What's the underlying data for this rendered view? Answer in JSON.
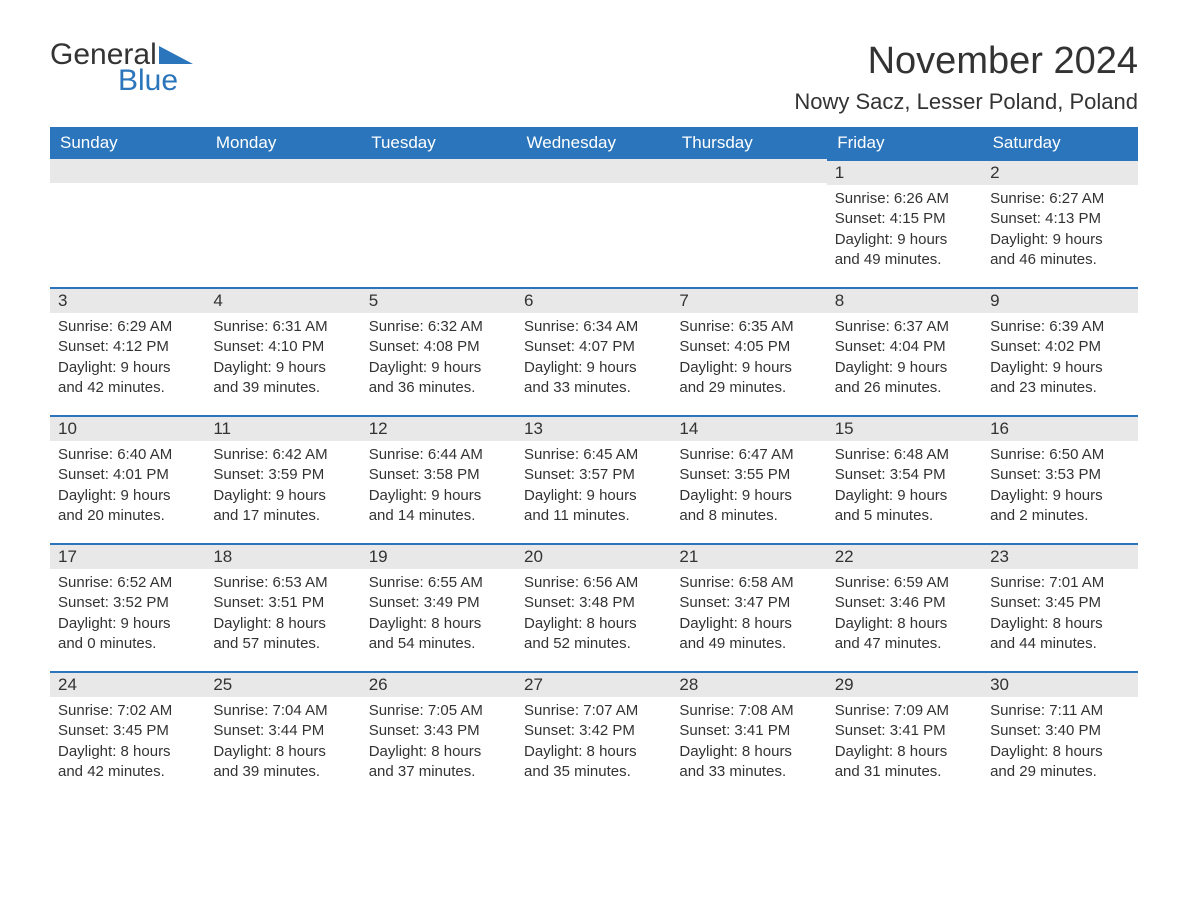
{
  "logo": {
    "top": "General",
    "bottom": "Blue",
    "top_color": "#333333",
    "bottom_color": "#2a75bb",
    "triangle_color": "#2a75bb"
  },
  "title": "November 2024",
  "location": "Nowy Sacz, Lesser Poland, Poland",
  "header_bg": "#2a75bb",
  "header_text_color": "#ffffff",
  "daynum_bg": "#e8e8e8",
  "border_color": "#2a75bb",
  "text_color": "#333333",
  "background_color": "#ffffff",
  "columns": [
    "Sunday",
    "Monday",
    "Tuesday",
    "Wednesday",
    "Thursday",
    "Friday",
    "Saturday"
  ],
  "weeks": [
    [
      null,
      null,
      null,
      null,
      null,
      {
        "n": "1",
        "sunrise": "Sunrise: 6:26 AM",
        "sunset": "Sunset: 4:15 PM",
        "d1": "Daylight: 9 hours",
        "d2": "and 49 minutes."
      },
      {
        "n": "2",
        "sunrise": "Sunrise: 6:27 AM",
        "sunset": "Sunset: 4:13 PM",
        "d1": "Daylight: 9 hours",
        "d2": "and 46 minutes."
      }
    ],
    [
      {
        "n": "3",
        "sunrise": "Sunrise: 6:29 AM",
        "sunset": "Sunset: 4:12 PM",
        "d1": "Daylight: 9 hours",
        "d2": "and 42 minutes."
      },
      {
        "n": "4",
        "sunrise": "Sunrise: 6:31 AM",
        "sunset": "Sunset: 4:10 PM",
        "d1": "Daylight: 9 hours",
        "d2": "and 39 minutes."
      },
      {
        "n": "5",
        "sunrise": "Sunrise: 6:32 AM",
        "sunset": "Sunset: 4:08 PM",
        "d1": "Daylight: 9 hours",
        "d2": "and 36 minutes."
      },
      {
        "n": "6",
        "sunrise": "Sunrise: 6:34 AM",
        "sunset": "Sunset: 4:07 PM",
        "d1": "Daylight: 9 hours",
        "d2": "and 33 minutes."
      },
      {
        "n": "7",
        "sunrise": "Sunrise: 6:35 AM",
        "sunset": "Sunset: 4:05 PM",
        "d1": "Daylight: 9 hours",
        "d2": "and 29 minutes."
      },
      {
        "n": "8",
        "sunrise": "Sunrise: 6:37 AM",
        "sunset": "Sunset: 4:04 PM",
        "d1": "Daylight: 9 hours",
        "d2": "and 26 minutes."
      },
      {
        "n": "9",
        "sunrise": "Sunrise: 6:39 AM",
        "sunset": "Sunset: 4:02 PM",
        "d1": "Daylight: 9 hours",
        "d2": "and 23 minutes."
      }
    ],
    [
      {
        "n": "10",
        "sunrise": "Sunrise: 6:40 AM",
        "sunset": "Sunset: 4:01 PM",
        "d1": "Daylight: 9 hours",
        "d2": "and 20 minutes."
      },
      {
        "n": "11",
        "sunrise": "Sunrise: 6:42 AM",
        "sunset": "Sunset: 3:59 PM",
        "d1": "Daylight: 9 hours",
        "d2": "and 17 minutes."
      },
      {
        "n": "12",
        "sunrise": "Sunrise: 6:44 AM",
        "sunset": "Sunset: 3:58 PM",
        "d1": "Daylight: 9 hours",
        "d2": "and 14 minutes."
      },
      {
        "n": "13",
        "sunrise": "Sunrise: 6:45 AM",
        "sunset": "Sunset: 3:57 PM",
        "d1": "Daylight: 9 hours",
        "d2": "and 11 minutes."
      },
      {
        "n": "14",
        "sunrise": "Sunrise: 6:47 AM",
        "sunset": "Sunset: 3:55 PM",
        "d1": "Daylight: 9 hours",
        "d2": "and 8 minutes."
      },
      {
        "n": "15",
        "sunrise": "Sunrise: 6:48 AM",
        "sunset": "Sunset: 3:54 PM",
        "d1": "Daylight: 9 hours",
        "d2": "and 5 minutes."
      },
      {
        "n": "16",
        "sunrise": "Sunrise: 6:50 AM",
        "sunset": "Sunset: 3:53 PM",
        "d1": "Daylight: 9 hours",
        "d2": "and 2 minutes."
      }
    ],
    [
      {
        "n": "17",
        "sunrise": "Sunrise: 6:52 AM",
        "sunset": "Sunset: 3:52 PM",
        "d1": "Daylight: 9 hours",
        "d2": "and 0 minutes."
      },
      {
        "n": "18",
        "sunrise": "Sunrise: 6:53 AM",
        "sunset": "Sunset: 3:51 PM",
        "d1": "Daylight: 8 hours",
        "d2": "and 57 minutes."
      },
      {
        "n": "19",
        "sunrise": "Sunrise: 6:55 AM",
        "sunset": "Sunset: 3:49 PM",
        "d1": "Daylight: 8 hours",
        "d2": "and 54 minutes."
      },
      {
        "n": "20",
        "sunrise": "Sunrise: 6:56 AM",
        "sunset": "Sunset: 3:48 PM",
        "d1": "Daylight: 8 hours",
        "d2": "and 52 minutes."
      },
      {
        "n": "21",
        "sunrise": "Sunrise: 6:58 AM",
        "sunset": "Sunset: 3:47 PM",
        "d1": "Daylight: 8 hours",
        "d2": "and 49 minutes."
      },
      {
        "n": "22",
        "sunrise": "Sunrise: 6:59 AM",
        "sunset": "Sunset: 3:46 PM",
        "d1": "Daylight: 8 hours",
        "d2": "and 47 minutes."
      },
      {
        "n": "23",
        "sunrise": "Sunrise: 7:01 AM",
        "sunset": "Sunset: 3:45 PM",
        "d1": "Daylight: 8 hours",
        "d2": "and 44 minutes."
      }
    ],
    [
      {
        "n": "24",
        "sunrise": "Sunrise: 7:02 AM",
        "sunset": "Sunset: 3:45 PM",
        "d1": "Daylight: 8 hours",
        "d2": "and 42 minutes."
      },
      {
        "n": "25",
        "sunrise": "Sunrise: 7:04 AM",
        "sunset": "Sunset: 3:44 PM",
        "d1": "Daylight: 8 hours",
        "d2": "and 39 minutes."
      },
      {
        "n": "26",
        "sunrise": "Sunrise: 7:05 AM",
        "sunset": "Sunset: 3:43 PM",
        "d1": "Daylight: 8 hours",
        "d2": "and 37 minutes."
      },
      {
        "n": "27",
        "sunrise": "Sunrise: 7:07 AM",
        "sunset": "Sunset: 3:42 PM",
        "d1": "Daylight: 8 hours",
        "d2": "and 35 minutes."
      },
      {
        "n": "28",
        "sunrise": "Sunrise: 7:08 AM",
        "sunset": "Sunset: 3:41 PM",
        "d1": "Daylight: 8 hours",
        "d2": "and 33 minutes."
      },
      {
        "n": "29",
        "sunrise": "Sunrise: 7:09 AM",
        "sunset": "Sunset: 3:41 PM",
        "d1": "Daylight: 8 hours",
        "d2": "and 31 minutes."
      },
      {
        "n": "30",
        "sunrise": "Sunrise: 7:11 AM",
        "sunset": "Sunset: 3:40 PM",
        "d1": "Daylight: 8 hours",
        "d2": "and 29 minutes."
      }
    ]
  ]
}
